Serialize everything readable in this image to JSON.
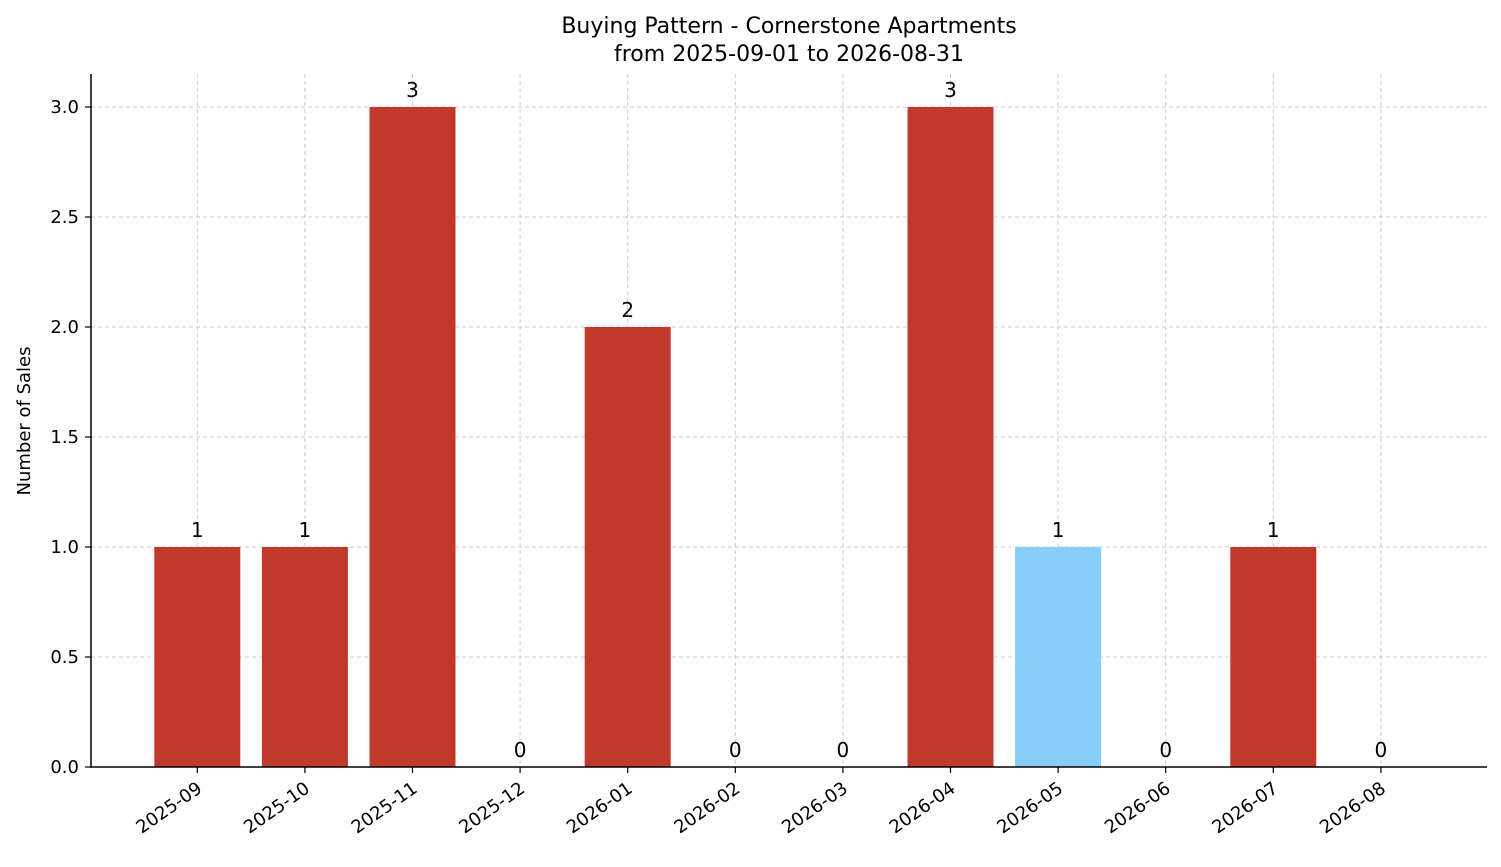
{
  "chart_data": {
    "type": "bar",
    "title": "Buying Pattern - Cornerstone Apartments",
    "subtitle": "from 2025-09-01 to 2026-08-31",
    "xlabel": "",
    "ylabel": "Number of Sales",
    "categories": [
      "2025-09",
      "2025-10",
      "2025-11",
      "2025-12",
      "2026-01",
      "2026-02",
      "2026-03",
      "2026-04",
      "2026-05",
      "2026-06",
      "2026-07",
      "2026-08"
    ],
    "values": [
      1,
      1,
      3,
      0,
      2,
      0,
      0,
      3,
      1,
      0,
      1,
      0
    ],
    "bar_colors": [
      "#c0392b",
      "#c0392b",
      "#c0392b",
      "#c0392b",
      "#c0392b",
      "#c0392b",
      "#c0392b",
      "#c0392b",
      "#87cefa",
      "#c0392b",
      "#c0392b",
      "#c0392b"
    ],
    "data_labels": [
      "1",
      "1",
      "3",
      "0",
      "2",
      "0",
      "0",
      "3",
      "1",
      "0",
      "1",
      "0"
    ],
    "ylim": [
      0,
      3.15
    ],
    "yticks": [
      "0.0",
      "0.5",
      "1.0",
      "1.5",
      "2.0",
      "2.5",
      "3.0"
    ],
    "ytick_values": [
      0,
      0.5,
      1.0,
      1.5,
      2.0,
      2.5,
      3.0
    ],
    "grid": true,
    "legend": "none"
  }
}
